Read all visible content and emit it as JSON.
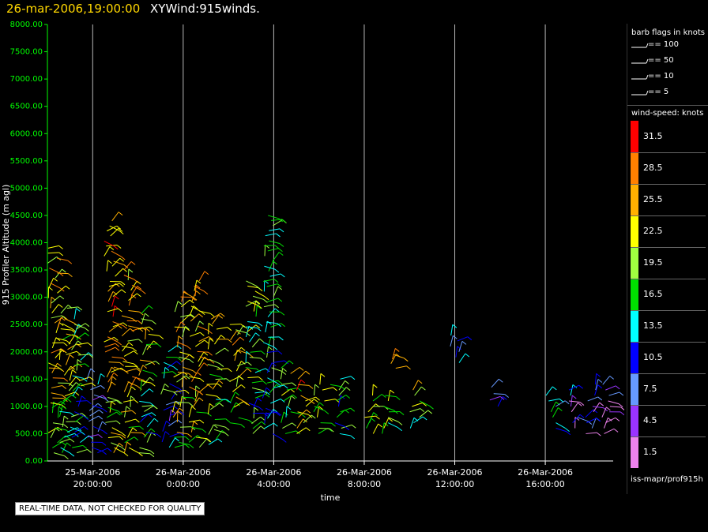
{
  "title": {
    "date": "26-mar-2006,19:00:00",
    "name": "XYWind:915winds."
  },
  "notice": "REAL-TIME DATA, NOT CHECKED FOR QUALITY",
  "footer_id": "iss-mapr/prof915h",
  "legend": {
    "barb_header": "barb flags in knots",
    "barbs": [
      "== 100",
      "== 50",
      "== 10",
      "== 5"
    ],
    "speed_header": "wind-speed: knots",
    "speed_levels": [
      {
        "label": "31.5",
        "color": "#ff0000"
      },
      {
        "label": "28.5",
        "color": "#ff8000"
      },
      {
        "label": "25.5",
        "color": "#ffb000"
      },
      {
        "label": "22.5",
        "color": "#ffff00"
      },
      {
        "label": "19.5",
        "color": "#a0ff40"
      },
      {
        "label": "16.5",
        "color": "#00e000"
      },
      {
        "label": "13.5",
        "color": "#00ffff"
      },
      {
        "label": "10.5",
        "color": "#0000ff"
      },
      {
        "label": "7.5",
        "color": "#6699ff"
      },
      {
        "label": "4.5",
        "color": "#9933ff"
      },
      {
        "label": "1.5",
        "color": "#ee82ee"
      }
    ]
  },
  "chart_data": {
    "type": "scatter",
    "xlabel": "time",
    "ylabel": "915 Profiler Altitude (m agl)",
    "ylim": [
      0,
      8000
    ],
    "xlim": [
      "25-Mar-2006 18:00",
      "26-Mar-2006 19:00"
    ],
    "ytick_labels": [
      "0.00",
      "500.00",
      "1000.00",
      "1500.00",
      "2000.00",
      "2500.00",
      "3000.00",
      "3500.00",
      "4000.00",
      "4500.00",
      "5000.00",
      "5500.00",
      "6000.00",
      "6500.00",
      "7000.00",
      "7500.00",
      "8000.00"
    ],
    "xticks": [
      {
        "date": "25-Mar-2006",
        "time": "20:00:00",
        "hour": 2
      },
      {
        "date": "26-Mar-2006",
        "time": "0:00:00",
        "hour": 6
      },
      {
        "date": "26-Mar-2006",
        "time": "4:00:00",
        "hour": 10
      },
      {
        "date": "26-Mar-2006",
        "time": "8:00:00",
        "hour": 14
      },
      {
        "date": "26-Mar-2006",
        "time": "12:00:00",
        "hour": 18
      },
      {
        "date": "26-Mar-2006",
        "time": "16:00:00",
        "hour": 22
      }
    ],
    "grid": "vertical",
    "units": "knots",
    "wind_profiles": [
      {
        "hour": 0.25,
        "min_alt": 150,
        "max_alt": 3900,
        "mean_speed": 24
      },
      {
        "hour": 0.75,
        "min_alt": 150,
        "max_alt": 2800,
        "mean_speed": 22
      },
      {
        "hour": 1.25,
        "min_alt": 150,
        "max_alt": 2600,
        "mean_speed": 18
      },
      {
        "hour": 2.0,
        "min_alt": 150,
        "max_alt": 1500,
        "mean_speed": 12
      },
      {
        "hour": 2.75,
        "min_alt": 150,
        "max_alt": 4400,
        "mean_speed": 26
      },
      {
        "hour": 3.5,
        "min_alt": 150,
        "max_alt": 3500,
        "mean_speed": 25
      },
      {
        "hour": 4.25,
        "min_alt": 150,
        "max_alt": 2700,
        "mean_speed": 20
      },
      {
        "hour": 5.25,
        "min_alt": 250,
        "max_alt": 2000,
        "mean_speed": 14
      },
      {
        "hour": 5.75,
        "min_alt": 250,
        "max_alt": 3100,
        "mean_speed": 24
      },
      {
        "hour": 6.5,
        "min_alt": 250,
        "max_alt": 3300,
        "mean_speed": 25
      },
      {
        "hour": 7.25,
        "min_alt": 300,
        "max_alt": 2600,
        "mean_speed": 22
      },
      {
        "hour": 8.25,
        "min_alt": 700,
        "max_alt": 2500,
        "mean_speed": 24
      },
      {
        "hour": 9.0,
        "min_alt": 500,
        "max_alt": 3300,
        "mean_speed": 18
      },
      {
        "hour": 9.75,
        "min_alt": 500,
        "max_alt": 4500,
        "mean_speed": 16
      },
      {
        "hour": 10.5,
        "min_alt": 500,
        "max_alt": 1700,
        "mean_speed": 22
      },
      {
        "hour": 11.25,
        "min_alt": 500,
        "max_alt": 1500,
        "mean_speed": 26
      },
      {
        "hour": 12.0,
        "min_alt": 500,
        "max_alt": 1400,
        "mean_speed": 24
      },
      {
        "hour": 12.75,
        "min_alt": 500,
        "max_alt": 1500,
        "mean_speed": 18
      },
      {
        "hour": 14.25,
        "min_alt": 500,
        "max_alt": 1200,
        "mean_speed": 24
      },
      {
        "hour": 15.0,
        "min_alt": 500,
        "max_alt": 1200,
        "mean_speed": 22
      },
      {
        "hour": 15.25,
        "min_alt": 1700,
        "max_alt": 1950,
        "mean_speed": 26
      },
      {
        "hour": 16.25,
        "min_alt": 600,
        "max_alt": 1300,
        "mean_speed": 22
      },
      {
        "hour": 18.0,
        "min_alt": 1800,
        "max_alt": 2300,
        "mean_speed": 11
      },
      {
        "hour": 19.75,
        "min_alt": 1000,
        "max_alt": 1350,
        "mean_speed": 11
      },
      {
        "hour": 22.25,
        "min_alt": 600,
        "max_alt": 1200,
        "mean_speed": 16
      },
      {
        "hour": 23.25,
        "min_alt": 600,
        "max_alt": 1300,
        "mean_speed": 10
      },
      {
        "hour": 24.0,
        "min_alt": 500,
        "max_alt": 1400,
        "mean_speed": 9
      },
      {
        "hour": 24.75,
        "min_alt": 500,
        "max_alt": 1400,
        "mean_speed": 5
      }
    ]
  }
}
